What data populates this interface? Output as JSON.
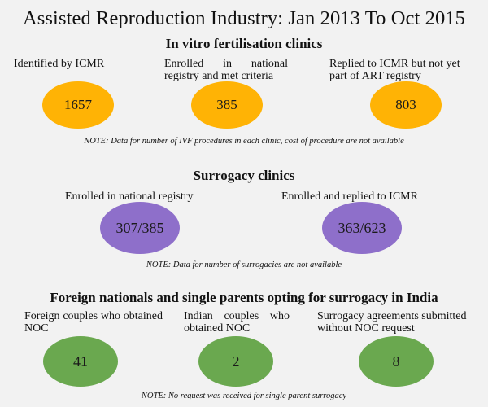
{
  "title": "Assisted Reproduction Industry: Jan 2013 To Oct 2015",
  "ivf": {
    "heading": "In vitro fertilisation clinics",
    "items": [
      {
        "label": "Identified by ICMR",
        "value": "1657"
      },
      {
        "label": "Enrolled in national registry and met criteria",
        "value": "385"
      },
      {
        "label": "Replied to ICMR but not yet part of ART registry",
        "value": "803"
      }
    ],
    "note": "NOTE: Data for number of IVF procedures in each clinic, cost of procedure are not available"
  },
  "surrogacy": {
    "heading": "Surrogacy clinics",
    "items": [
      {
        "label": "Enrolled in national  registry",
        "value": "307/385"
      },
      {
        "label": "Enrolled and replied to ICMR",
        "value": "363/623"
      }
    ],
    "note": "NOTE: Data for number of surrogacies are not available"
  },
  "foreign": {
    "heading": "Foreign nationals and single parents opting for surrogacy in India",
    "items": [
      {
        "label": "Foreign couples who obtained NOC",
        "value": "41"
      },
      {
        "label": "Indian couples who obtained NOC",
        "value": "2"
      },
      {
        "label": "Surrogacy agreements submitted without NOC request",
        "value": "8"
      }
    ],
    "note": "NOTE: No request was received for single parent surrogacy"
  },
  "colors": {
    "background": "#f2f2f2",
    "ivf_bubble": "#ffb305",
    "surrogacy_bubble": "#8e6fca",
    "foreign_bubble": "#6aa84f"
  }
}
